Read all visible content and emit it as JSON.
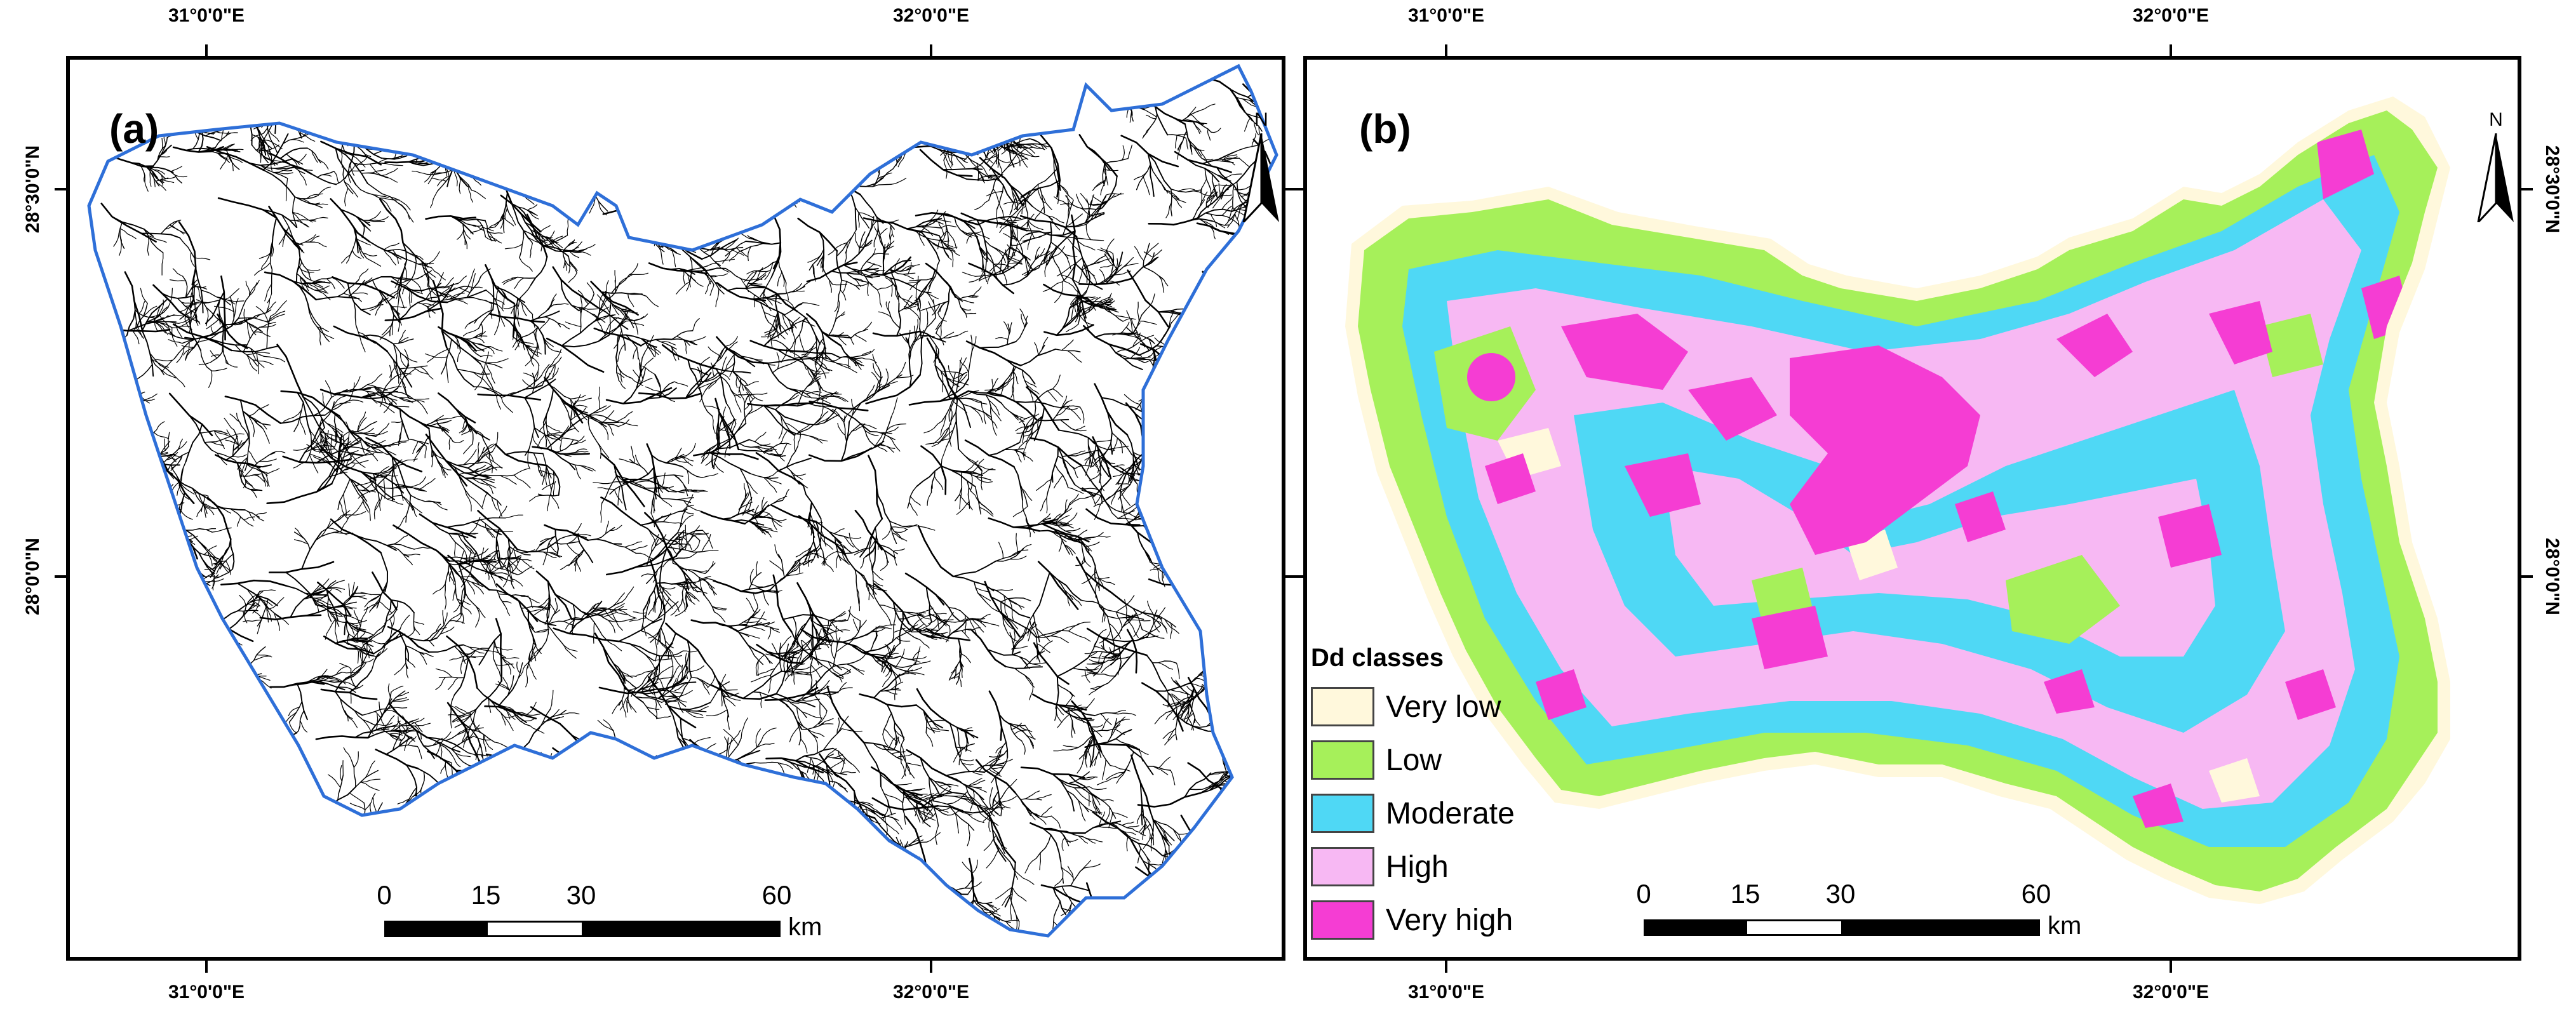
{
  "coordinates": {
    "lon_31": "31°0'0\"E",
    "lon_32": "32°0'0\"E",
    "lat_2830": "28°30'0\"N",
    "lat_28": "28°0'0\"N"
  },
  "panel_a": {
    "label": "(a)"
  },
  "panel_b": {
    "label": "(b)"
  },
  "north_arrow": {
    "letter": "N"
  },
  "scale_bar": {
    "ticks": [
      "0",
      "15",
      "30",
      "60"
    ],
    "unit": "km"
  },
  "legend": {
    "title": "Dd classes",
    "items": [
      {
        "label": "Very low",
        "color": "#FFF8DC"
      },
      {
        "label": "Low",
        "color": "#A6F05A"
      },
      {
        "label": "Moderate",
        "color": "#4FD8F5"
      },
      {
        "label": "High",
        "color": "#F7B8F3"
      },
      {
        "label": "Very high",
        "color": "#F53DD3"
      }
    ]
  },
  "colors": {
    "basin_outline": "#2E6FD8",
    "drainage_lines": "#000000"
  }
}
